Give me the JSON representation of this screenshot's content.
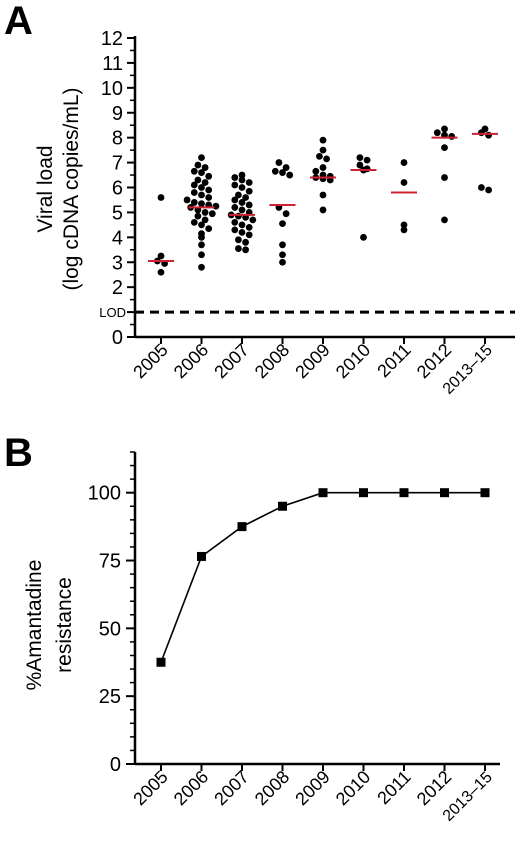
{
  "chart_data": [
    {
      "panel": "A",
      "type": "scatter",
      "categories": [
        "2005",
        "2006",
        "2007",
        "2008",
        "2009",
        "2010",
        "2011",
        "2012",
        "2013–15"
      ],
      "ylabel_line1": "Viral load",
      "ylabel_line2": "(log cDNA copies/mL)",
      "ylim": [
        0,
        12
      ],
      "yticks": [
        0,
        1,
        2,
        3,
        4,
        5,
        6,
        7,
        8,
        9,
        10,
        11,
        12
      ],
      "ytick_labels": [
        "0",
        "",
        "2",
        "3",
        "4",
        "5",
        "6",
        "7",
        "8",
        "9",
        "10",
        "11",
        "12"
      ],
      "lod": {
        "value": 1,
        "label": "LOD"
      },
      "median_color": "#cc2233",
      "point_color": "#000000",
      "groups": [
        {
          "medians": 3.05,
          "points": [
            5.6,
            3.25,
            3.05,
            2.95,
            2.6
          ]
        },
        {
          "medians": 5.2,
          "points": [
            7.2,
            6.9,
            6.8,
            6.65,
            6.6,
            6.45,
            6.3,
            6.2,
            6.1,
            6.0,
            5.9,
            5.8,
            5.7,
            5.6,
            5.5,
            5.4,
            5.35,
            5.3,
            5.25,
            5.2,
            5.1,
            5.0,
            4.95,
            4.85,
            4.7,
            4.6,
            4.5,
            4.35,
            4.15,
            4.0,
            3.7,
            3.3,
            2.8
          ]
        },
        {
          "medians": 4.9,
          "points": [
            6.5,
            6.4,
            6.3,
            6.2,
            6.1,
            6.0,
            5.85,
            5.7,
            5.6,
            5.5,
            5.4,
            5.3,
            5.2,
            5.1,
            5.0,
            4.9,
            4.85,
            4.8,
            4.7,
            4.6,
            4.5,
            4.4,
            4.3,
            4.2,
            4.1,
            3.9,
            3.8,
            3.55,
            3.5
          ]
        },
        {
          "medians": 5.3,
          "points": [
            7.0,
            6.8,
            6.65,
            6.6,
            6.5,
            5.2,
            4.95,
            4.55,
            3.7,
            3.3,
            3.0
          ]
        },
        {
          "medians": 6.4,
          "points": [
            7.9,
            7.5,
            7.25,
            7.15,
            6.8,
            6.65,
            6.5,
            6.45,
            6.4,
            6.35,
            6.3,
            5.7,
            5.1
          ]
        },
        {
          "medians": 6.7,
          "points": [
            7.2,
            7.1,
            6.9,
            6.75,
            6.7,
            4.0
          ]
        },
        {
          "medians": 5.8,
          "points": [
            7.0,
            6.2,
            4.5,
            4.3
          ]
        },
        {
          "medians": 8.0,
          "points": [
            8.35,
            8.2,
            8.1,
            8.05,
            7.6,
            6.4,
            4.7
          ]
        },
        {
          "medians": 8.15,
          "points": [
            8.35,
            8.2,
            8.1,
            6.0,
            5.9
          ]
        }
      ]
    },
    {
      "panel": "B",
      "type": "line",
      "categories": [
        "2005",
        "2006",
        "2007",
        "2008",
        "2009",
        "2010",
        "2011",
        "2012",
        "2013–15"
      ],
      "values": [
        37.5,
        76.5,
        87.5,
        95,
        100,
        100,
        100,
        100,
        100
      ],
      "ylabel_line1": "%Amantadine",
      "ylabel_line2": "resistance",
      "ylim": [
        0,
        115
      ],
      "yticks": [
        0,
        25,
        50,
        75,
        100
      ],
      "ytick_labels": [
        "0",
        "25",
        "50",
        "75",
        "100"
      ],
      "color": "#000000"
    }
  ]
}
